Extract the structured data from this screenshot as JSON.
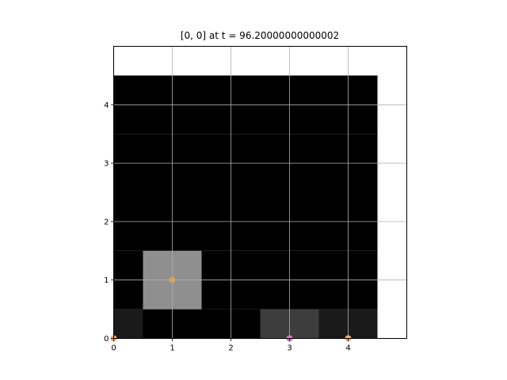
{
  "chart_data": {
    "type": "heatmap",
    "title": "[0, 0] at t = 96.20000000000002",
    "xlabel": "",
    "ylabel": "",
    "xlim": [
      0,
      5
    ],
    "ylim": [
      0,
      5
    ],
    "xticks": [
      0,
      1,
      2,
      3,
      4
    ],
    "yticks": [
      0,
      1,
      2,
      3,
      4
    ],
    "grid": true,
    "cell_values": [
      [
        0.1,
        0.0,
        0.0,
        0.24,
        0.1
      ],
      [
        0.0,
        0.56,
        0.0,
        0.0,
        0.0
      ],
      [
        0.0,
        0.0,
        0.0,
        0.0,
        0.0
      ],
      [
        0.0,
        0.0,
        0.0,
        0.0,
        0.0
      ],
      [
        0.0,
        0.0,
        0.0,
        0.0,
        0.0
      ]
    ],
    "markers": [
      {
        "x": 0,
        "y": 0,
        "color": "#f4a582"
      },
      {
        "x": 1,
        "y": 1,
        "color": "#d9a35a"
      },
      {
        "x": 3,
        "y": 0,
        "color": "#c77fc4"
      },
      {
        "x": 4,
        "y": 0,
        "color": "#e0b27a"
      }
    ]
  }
}
